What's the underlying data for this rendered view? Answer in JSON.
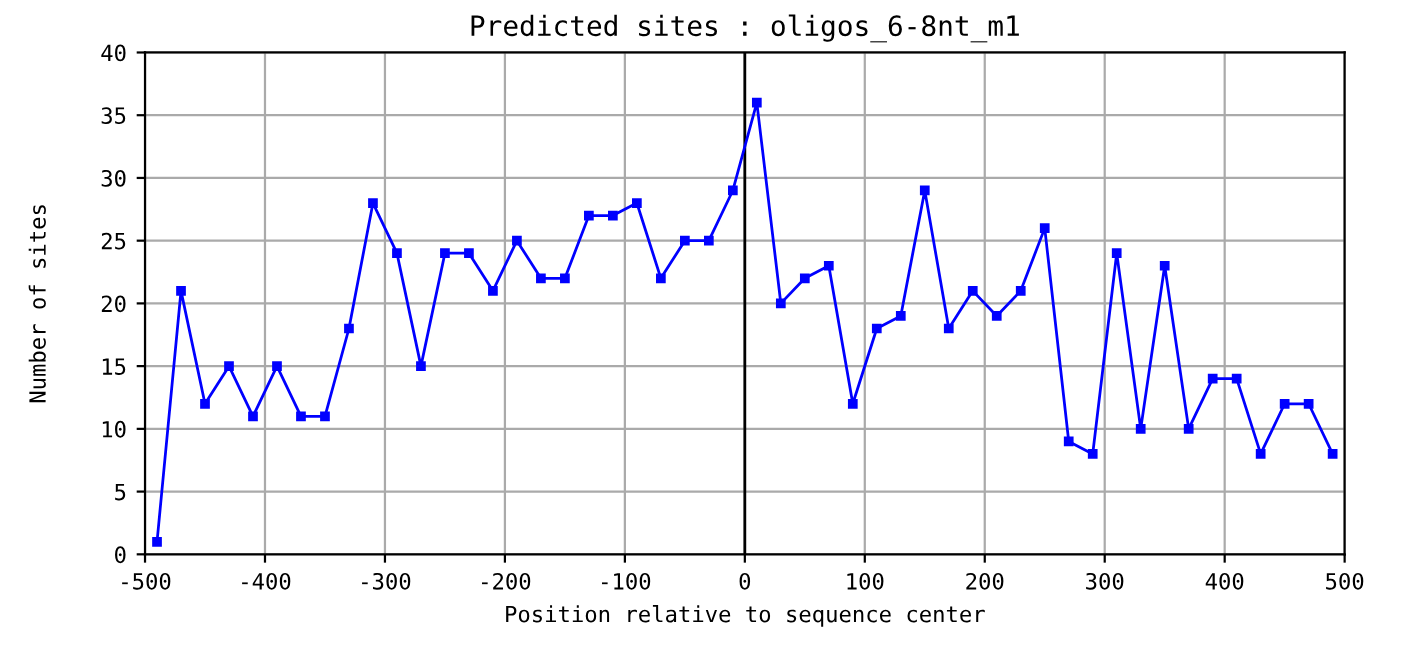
{
  "chart_data": {
    "type": "line",
    "title": "Predicted sites : oligos_6-8nt_m1",
    "xlabel": "Position relative to sequence center",
    "ylabel": "Number of sites",
    "x": [
      -490,
      -470,
      -450,
      -430,
      -410,
      -390,
      -370,
      -350,
      -330,
      -310,
      -290,
      -270,
      -250,
      -230,
      -210,
      -190,
      -170,
      -150,
      -130,
      -110,
      -90,
      -70,
      -50,
      -30,
      -10,
      10,
      30,
      50,
      70,
      90,
      110,
      130,
      150,
      170,
      190,
      210,
      230,
      250,
      270,
      290,
      310,
      330,
      350,
      370,
      390,
      410,
      430,
      450,
      470,
      490
    ],
    "series": [
      {
        "color": "#0000ff",
        "values": [
          1,
          21,
          12,
          15,
          11,
          15,
          11,
          11,
          18,
          28,
          24,
          15,
          24,
          24,
          21,
          25,
          22,
          22,
          27,
          27,
          28,
          22,
          25,
          25,
          29,
          36,
          20,
          22,
          23,
          12,
          18,
          19,
          29,
          18,
          21,
          19,
          21,
          26,
          9,
          8,
          24,
          10,
          23,
          10,
          14,
          14,
          8,
          12,
          12,
          8
        ]
      }
    ],
    "xlim": [
      -500,
      500
    ],
    "xticks": [
      -500,
      -400,
      -300,
      -200,
      -100,
      0,
      100,
      200,
      300,
      400,
      500
    ],
    "ylim": [
      0,
      40
    ],
    "yticks": [
      0,
      5,
      10,
      15,
      20,
      25,
      30,
      35,
      40
    ],
    "ref_lines": [
      {
        "axis": "x",
        "value": 0,
        "color": "#000000"
      }
    ],
    "grid": true,
    "marker": "square",
    "line_style": "solid"
  }
}
